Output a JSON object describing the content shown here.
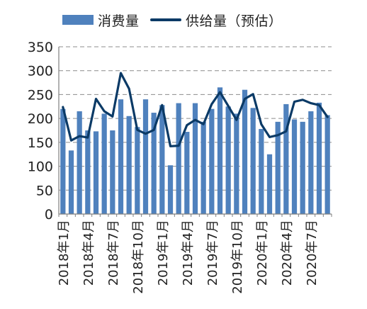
{
  "chart_data": {
    "type": "bar",
    "title": "",
    "xlabel": "",
    "ylabel": "",
    "ylim": [
      0,
      350
    ],
    "yticks": [
      "0",
      "50",
      "100",
      "150",
      "200",
      "250",
      "300",
      "350"
    ],
    "grid": "horizontal dashed",
    "legend_position": "top-center",
    "categories": [
      "2018年1月",
      "2018年2月",
      "2018年3月",
      "2018年4月",
      "2018年5月",
      "2018年6月",
      "2018年7月",
      "2018年8月",
      "2018年9月",
      "2018年10月",
      "2018年11月",
      "2018年12月",
      "2019年1月",
      "2019年2月",
      "2019年3月",
      "2019年4月",
      "2019年5月",
      "2019年6月",
      "2019年7月",
      "2019年8月",
      "2019年9月",
      "2019年10月",
      "2019年11月",
      "2019年12月",
      "2020年1月",
      "2020年2月",
      "2020年3月",
      "2020年4月",
      "2020年5月",
      "2020年6月",
      "2020年7月",
      "2020年8月",
      "2020年9月"
    ],
    "xtick_labels": [
      "2018年1月",
      "2018年4月",
      "2018年7月",
      "2018年10月",
      "2019年1月",
      "2019年4月",
      "2019年7月",
      "2019年10月",
      "2020年1月",
      "2020年4月",
      "2020年7月"
    ],
    "xtick_every": 3,
    "series": [
      {
        "name": "消费量",
        "kind": "bar",
        "color": "#4f81bd",
        "values": [
          220,
          133,
          215,
          175,
          173,
          210,
          175,
          240,
          205,
          182,
          240,
          212,
          228,
          102,
          232,
          172,
          232,
          193,
          220,
          265,
          225,
          210,
          260,
          222,
          178,
          125,
          193,
          230,
          198,
          193,
          215,
          233,
          207
        ]
      },
      {
        "name": "供给量（预估）",
        "kind": "line",
        "color": "#0b3a66",
        "values": [
          224,
          154,
          163,
          160,
          241,
          215,
          204,
          295,
          262,
          176,
          168,
          176,
          228,
          142,
          143,
          186,
          197,
          188,
          230,
          255,
          226,
          197,
          241,
          251,
          188,
          161,
          165,
          173,
          235,
          239,
          232,
          228,
          203
        ]
      }
    ]
  }
}
